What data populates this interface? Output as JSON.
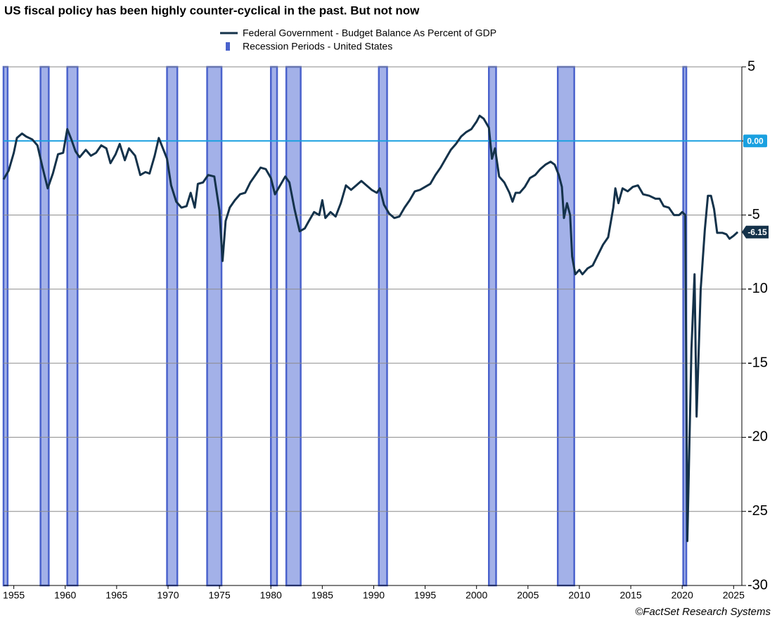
{
  "chart_data": {
    "type": "line",
    "title": "US fiscal policy has been highly counter-cyclical in the past. But not now",
    "source": "©FactSet Research Systems",
    "xlim": [
      1954,
      2025.8
    ],
    "xticks": [
      1955,
      1960,
      1965,
      1970,
      1975,
      1980,
      1985,
      1990,
      1995,
      2000,
      2005,
      2010,
      2015,
      2020,
      2025
    ],
    "ylim": [
      -30,
      5
    ],
    "yticks": [
      5,
      0,
      -5,
      -10,
      -15,
      -20,
      -25,
      -30
    ],
    "grid": true,
    "reference_line": {
      "value": 0,
      "label": "0.00",
      "color": "#1aa0e0"
    },
    "end_label": -6.15,
    "recessions": {
      "name": "Recession Periods - United States",
      "color": "#a3b1e8",
      "periods": [
        [
          1954.0,
          1954.4
        ],
        [
          1957.6,
          1958.4
        ],
        [
          1960.2,
          1961.2
        ],
        [
          1969.9,
          1970.9
        ],
        [
          1973.8,
          1975.2
        ],
        [
          1980.0,
          1980.6
        ],
        [
          1981.5,
          1982.9
        ],
        [
          1990.5,
          1991.3
        ],
        [
          2001.2,
          2001.9
        ],
        [
          2007.9,
          2009.5
        ],
        [
          2020.1,
          2020.4
        ]
      ]
    },
    "series": [
      {
        "name": "Federal Government - Budget Balance As Percent of GDP",
        "color": "#14324a",
        "x": [
          1954.0,
          1954.5,
          1955.0,
          1955.3,
          1955.8,
          1956.2,
          1956.8,
          1957.3,
          1957.8,
          1958.3,
          1958.8,
          1959.3,
          1959.8,
          1960.2,
          1960.6,
          1961.0,
          1961.4,
          1962.0,
          1962.5,
          1963.0,
          1963.5,
          1964.0,
          1964.4,
          1964.9,
          1965.3,
          1965.8,
          1966.2,
          1966.8,
          1967.3,
          1967.8,
          1968.2,
          1968.7,
          1969.1,
          1969.5,
          1969.9,
          1970.3,
          1970.8,
          1971.3,
          1971.8,
          1972.2,
          1972.6,
          1972.9,
          1973.4,
          1973.9,
          1974.5,
          1975.0,
          1975.3,
          1975.6,
          1976.0,
          1976.5,
          1977.0,
          1977.5,
          1978.0,
          1978.5,
          1979.0,
          1979.5,
          1980.0,
          1980.4,
          1980.9,
          1981.4,
          1981.8,
          1982.3,
          1982.8,
          1983.3,
          1983.7,
          1984.2,
          1984.7,
          1985.0,
          1985.3,
          1985.8,
          1986.3,
          1986.8,
          1987.3,
          1987.8,
          1988.3,
          1988.8,
          1989.3,
          1989.8,
          1990.3,
          1990.6,
          1991.0,
          1991.5,
          1992.0,
          1992.5,
          1993.0,
          1993.5,
          1994.0,
          1994.5,
          1995.0,
          1995.5,
          1996.0,
          1996.5,
          1997.0,
          1997.5,
          1998.0,
          1998.5,
          1999.0,
          1999.5,
          2000.0,
          2000.3,
          2000.7,
          2001.2,
          2001.5,
          2001.8,
          2002.2,
          2002.7,
          2003.2,
          2003.5,
          2003.8,
          2004.2,
          2004.7,
          2005.2,
          2005.7,
          2006.2,
          2006.7,
          2007.2,
          2007.6,
          2008.0,
          2008.3,
          2008.5,
          2008.8,
          2009.1,
          2009.3,
          2009.6,
          2010.0,
          2010.3,
          2010.8,
          2011.3,
          2011.8,
          2012.3,
          2012.8,
          2013.3,
          2013.5,
          2013.8,
          2014.2,
          2014.7,
          2015.2,
          2015.7,
          2016.2,
          2016.8,
          2017.4,
          2017.8,
          2018.2,
          2018.7,
          2019.2,
          2019.7,
          2020.0,
          2020.3,
          2020.5,
          2020.9,
          2021.2,
          2021.4,
          2021.8,
          2022.2,
          2022.5,
          2022.8,
          2023.1,
          2023.4,
          2023.9,
          2024.3,
          2024.6,
          2025.0,
          2025.4
        ],
        "values": [
          -2.6,
          -2.0,
          -0.8,
          0.2,
          0.5,
          0.3,
          0.1,
          -0.3,
          -1.8,
          -3.2,
          -2.2,
          -0.9,
          -0.8,
          0.8,
          0.1,
          -0.7,
          -1.1,
          -0.6,
          -1.0,
          -0.8,
          -0.3,
          -0.5,
          -1.5,
          -0.9,
          -0.2,
          -1.3,
          -0.5,
          -1.0,
          -2.3,
          -2.1,
          -2.2,
          -1.0,
          0.2,
          -0.5,
          -1.2,
          -3.0,
          -4.1,
          -4.5,
          -4.4,
          -3.5,
          -4.5,
          -2.9,
          -2.8,
          -2.3,
          -2.4,
          -4.7,
          -8.1,
          -5.4,
          -4.5,
          -4.0,
          -3.6,
          -3.5,
          -2.8,
          -2.3,
          -1.8,
          -1.9,
          -2.5,
          -3.6,
          -3.0,
          -2.4,
          -2.8,
          -4.6,
          -6.1,
          -5.9,
          -5.4,
          -4.8,
          -5.0,
          -4.0,
          -5.2,
          -4.8,
          -5.1,
          -4.2,
          -3.0,
          -3.3,
          -3.0,
          -2.7,
          -3.0,
          -3.3,
          -3.5,
          -3.2,
          -4.3,
          -4.9,
          -5.2,
          -5.1,
          -4.5,
          -4.0,
          -3.4,
          -3.3,
          -3.1,
          -2.9,
          -2.3,
          -1.8,
          -1.2,
          -0.6,
          -0.2,
          0.3,
          0.6,
          0.8,
          1.3,
          1.7,
          1.5,
          0.9,
          -1.2,
          -0.5,
          -2.4,
          -2.8,
          -3.5,
          -4.1,
          -3.5,
          -3.5,
          -3.1,
          -2.5,
          -2.3,
          -1.9,
          -1.6,
          -1.4,
          -1.6,
          -2.3,
          -3.1,
          -5.2,
          -4.2,
          -5.0,
          -7.8,
          -9.0,
          -8.7,
          -9.0,
          -8.6,
          -8.4,
          -7.7,
          -7.0,
          -6.5,
          -4.5,
          -3.2,
          -4.2,
          -3.2,
          -3.4,
          -3.1,
          -3.0,
          -3.6,
          -3.7,
          -3.9,
          -3.9,
          -4.4,
          -4.5,
          -5.0,
          -5.0,
          -4.8,
          -5.0,
          -27.0,
          -14.0,
          -9.0,
          -18.6,
          -10.0,
          -6.0,
          -3.7,
          -3.7,
          -4.6,
          -6.2,
          -6.2,
          -6.3,
          -6.6,
          -6.4,
          -6.15
        ]
      }
    ]
  }
}
